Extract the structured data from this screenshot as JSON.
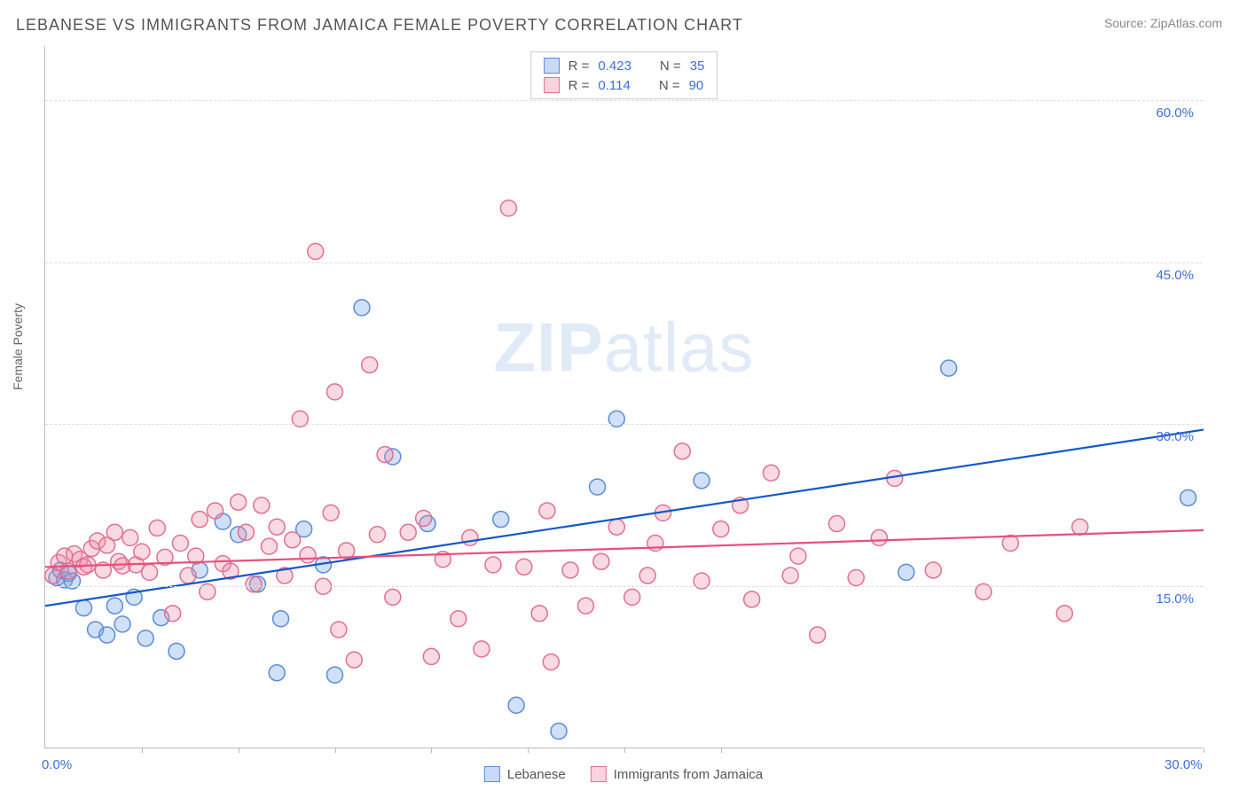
{
  "title": "LEBANESE VS IMMIGRANTS FROM JAMAICA FEMALE POVERTY CORRELATION CHART",
  "source": "Source: ZipAtlas.com",
  "ylabel": "Female Poverty",
  "watermark_a": "ZIP",
  "watermark_b": "atlas",
  "chart": {
    "type": "scatter-with-regression",
    "background_color": "#ffffff",
    "grid_color": "#dddddd",
    "axis_color": "#bbbbbb",
    "xlim": [
      0,
      30
    ],
    "ylim": [
      0,
      65
    ],
    "xticks_marks": [
      2.5,
      5,
      7.5,
      10,
      12.5,
      15,
      17.5,
      30
    ],
    "xticks_labeled": [
      {
        "v": 0,
        "label": "0.0%"
      },
      {
        "v": 30,
        "label": "30.0%"
      }
    ],
    "yticks": [
      {
        "v": 15,
        "label": "15.0%"
      },
      {
        "v": 30,
        "label": "30.0%"
      },
      {
        "v": 45,
        "label": "45.0%"
      },
      {
        "v": 60,
        "label": "60.0%"
      }
    ],
    "marker_radius": 9,
    "marker_stroke_width": 1.5,
    "line_width": 2.2,
    "series": [
      {
        "id": "lebanese",
        "label": "Lebanese",
        "fill": "rgba(120,165,230,0.35)",
        "stroke": "#5a8cd8",
        "line_color": "#1258c9",
        "R": "0.423",
        "N": "35",
        "regression": {
          "x0": 0,
          "y0": 13.2,
          "x1": 30,
          "y1": 29.5
        },
        "points": [
          [
            0.3,
            15.8
          ],
          [
            0.4,
            16.5
          ],
          [
            0.5,
            15.6
          ],
          [
            0.6,
            16.2
          ],
          [
            0.7,
            15.5
          ],
          [
            1.0,
            13.0
          ],
          [
            1.3,
            11.0
          ],
          [
            1.6,
            10.5
          ],
          [
            1.8,
            13.2
          ],
          [
            2.0,
            11.5
          ],
          [
            2.3,
            14.0
          ],
          [
            2.6,
            10.2
          ],
          [
            3.0,
            12.1
          ],
          [
            3.4,
            9.0
          ],
          [
            4.0,
            16.5
          ],
          [
            4.6,
            21.0
          ],
          [
            5.0,
            19.8
          ],
          [
            5.5,
            15.2
          ],
          [
            6.1,
            12.0
          ],
          [
            6.7,
            20.3
          ],
          [
            7.2,
            17.0
          ],
          [
            7.5,
            6.8
          ],
          [
            8.2,
            40.8
          ],
          [
            9.0,
            27.0
          ],
          [
            9.9,
            20.8
          ],
          [
            11.8,
            21.2
          ],
          [
            12.2,
            4.0
          ],
          [
            13.3,
            1.6
          ],
          [
            14.3,
            24.2
          ],
          [
            14.8,
            30.5
          ],
          [
            17.0,
            24.8
          ],
          [
            22.3,
            16.3
          ],
          [
            23.4,
            35.2
          ],
          [
            29.6,
            23.2
          ],
          [
            6.0,
            7.0
          ]
        ]
      },
      {
        "id": "jamaica",
        "label": "Immigrants from Jamaica",
        "fill": "rgba(240,140,165,0.32)",
        "stroke": "#e07090",
        "line_color": "#e84f7c",
        "R": "0.114",
        "N": "90",
        "regression": {
          "x0": 0,
          "y0": 16.8,
          "x1": 30,
          "y1": 20.2
        },
        "points": [
          [
            0.2,
            16.0
          ],
          [
            0.35,
            17.2
          ],
          [
            0.5,
            17.8
          ],
          [
            0.6,
            16.4
          ],
          [
            0.75,
            18.0
          ],
          [
            0.9,
            17.5
          ],
          [
            1.0,
            16.8
          ],
          [
            1.1,
            17.0
          ],
          [
            1.2,
            18.5
          ],
          [
            1.35,
            19.2
          ],
          [
            1.5,
            16.5
          ],
          [
            1.6,
            18.8
          ],
          [
            1.8,
            20.0
          ],
          [
            1.9,
            17.3
          ],
          [
            2.0,
            16.9
          ],
          [
            2.2,
            19.5
          ],
          [
            2.35,
            17.0
          ],
          [
            2.5,
            18.2
          ],
          [
            2.7,
            16.3
          ],
          [
            2.9,
            20.4
          ],
          [
            3.1,
            17.7
          ],
          [
            3.3,
            12.5
          ],
          [
            3.5,
            19.0
          ],
          [
            3.7,
            16.0
          ],
          [
            3.9,
            17.8
          ],
          [
            4.0,
            21.2
          ],
          [
            4.2,
            14.5
          ],
          [
            4.4,
            22.0
          ],
          [
            4.6,
            17.1
          ],
          [
            4.8,
            16.4
          ],
          [
            5.0,
            22.8
          ],
          [
            5.2,
            20.0
          ],
          [
            5.4,
            15.2
          ],
          [
            5.6,
            22.5
          ],
          [
            5.8,
            18.7
          ],
          [
            6.0,
            20.5
          ],
          [
            6.2,
            16.0
          ],
          [
            6.4,
            19.3
          ],
          [
            6.6,
            30.5
          ],
          [
            6.8,
            17.9
          ],
          [
            7.0,
            46.0
          ],
          [
            7.2,
            15.0
          ],
          [
            7.4,
            21.8
          ],
          [
            7.6,
            11.0
          ],
          [
            7.8,
            18.3
          ],
          [
            8.0,
            8.2
          ],
          [
            8.4,
            35.5
          ],
          [
            8.6,
            19.8
          ],
          [
            8.8,
            27.2
          ],
          [
            9.0,
            14.0
          ],
          [
            9.4,
            20.0
          ],
          [
            9.8,
            21.3
          ],
          [
            10.0,
            8.5
          ],
          [
            10.3,
            17.5
          ],
          [
            10.7,
            12.0
          ],
          [
            11.0,
            19.5
          ],
          [
            11.3,
            9.2
          ],
          [
            11.6,
            17.0
          ],
          [
            12.0,
            50.0
          ],
          [
            12.4,
            16.8
          ],
          [
            12.8,
            12.5
          ],
          [
            13.1,
            8.0
          ],
          [
            13.6,
            16.5
          ],
          [
            14.0,
            13.2
          ],
          [
            14.4,
            17.3
          ],
          [
            14.8,
            20.5
          ],
          [
            15.2,
            14.0
          ],
          [
            15.6,
            16.0
          ],
          [
            16.0,
            21.8
          ],
          [
            16.5,
            27.5
          ],
          [
            17.0,
            15.5
          ],
          [
            17.5,
            20.3
          ],
          [
            18.0,
            22.5
          ],
          [
            18.3,
            13.8
          ],
          [
            18.8,
            25.5
          ],
          [
            19.3,
            16.0
          ],
          [
            20.0,
            10.5
          ],
          [
            20.5,
            20.8
          ],
          [
            21.0,
            15.8
          ],
          [
            21.6,
            19.5
          ],
          [
            22.0,
            25.0
          ],
          [
            23.0,
            16.5
          ],
          [
            24.3,
            14.5
          ],
          [
            25.0,
            19.0
          ],
          [
            26.4,
            12.5
          ],
          [
            7.5,
            33.0
          ],
          [
            13.0,
            22.0
          ],
          [
            15.8,
            19.0
          ],
          [
            19.5,
            17.8
          ],
          [
            26.8,
            20.5
          ]
        ]
      }
    ]
  },
  "legend_top": {
    "rows": [
      {
        "swatch": "blue",
        "r_label": "R =",
        "r_val": "0.423",
        "n_label": "N =",
        "n_val": "35"
      },
      {
        "swatch": "pink",
        "r_label": "R =",
        "r_val": "0.114",
        "n_label": "N =",
        "n_val": "90"
      }
    ]
  },
  "legend_bottom": [
    {
      "swatch": "blue",
      "label": "Lebanese"
    },
    {
      "swatch": "pink",
      "label": "Immigrants from Jamaica"
    }
  ]
}
